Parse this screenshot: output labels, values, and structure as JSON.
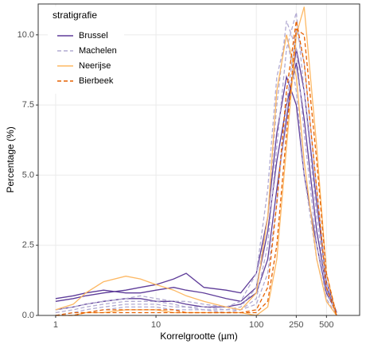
{
  "chart_data": {
    "type": "line",
    "log_x": true,
    "grid": true,
    "legend": "top-left",
    "legend_title": "stratigrafie",
    "x_label": "Korrelgrootte (µm)",
    "y_label": "Percentage (%)",
    "xlim": [
      0.67,
      1070
    ],
    "xticks": [
      1,
      10,
      100,
      250,
      500
    ],
    "ylim": [
      0,
      11.1
    ],
    "yticks": [
      {
        "value": 0,
        "label": "0.0"
      },
      {
        "value": 2.5,
        "label": "2.5"
      },
      {
        "value": 5,
        "label": "5.0"
      },
      {
        "value": 7.5,
        "label": "7.5"
      },
      {
        "value": 10,
        "label": "10.0"
      }
    ],
    "x": [
      1,
      1.5,
      2,
      3,
      5,
      7,
      10,
      15,
      20,
      30,
      50,
      70,
      100,
      130,
      160,
      200,
      250,
      300,
      400,
      500,
      630
    ],
    "series": [
      {
        "name": "Brussel",
        "color": "#5e3c99",
        "linetype": "solid",
        "curves": [
          [
            0.5,
            0.6,
            0.7,
            0.8,
            0.9,
            1.0,
            1.1,
            1.3,
            1.5,
            1.0,
            0.9,
            0.8,
            1.5,
            3.5,
            6.5,
            8.5,
            7.5,
            5.0,
            2.5,
            0.8,
            0.1
          ],
          [
            0.6,
            0.7,
            0.8,
            0.9,
            0.8,
            0.8,
            0.9,
            1.0,
            0.9,
            0.8,
            0.6,
            0.5,
            1.0,
            3.0,
            5.5,
            7.5,
            9.0,
            7.0,
            3.0,
            1.0,
            0.1
          ],
          [
            0.2,
            0.3,
            0.4,
            0.5,
            0.6,
            0.6,
            0.5,
            0.5,
            0.4,
            0.3,
            0.3,
            0.4,
            0.8,
            2.0,
            4.5,
            7.0,
            9.5,
            8.0,
            4.0,
            1.2,
            0.1
          ]
        ]
      },
      {
        "name": "Machelen",
        "color": "#b2abd2",
        "linetype": "dashed",
        "curves": [
          [
            0.1,
            0.2,
            0.3,
            0.4,
            0.5,
            0.5,
            0.5,
            0.4,
            0.3,
            0.3,
            0.2,
            0.3,
            1.0,
            3.5,
            7.5,
            10.5,
            9.5,
            6.5,
            2.5,
            0.6,
            0.0
          ],
          [
            0.0,
            0.1,
            0.2,
            0.3,
            0.4,
            0.4,
            0.4,
            0.3,
            0.3,
            0.2,
            0.2,
            0.2,
            0.6,
            2.5,
            6.0,
            9.5,
            10.8,
            8.0,
            3.5,
            0.9,
            0.0
          ],
          [
            0.2,
            0.3,
            0.4,
            0.5,
            0.6,
            0.7,
            0.6,
            0.5,
            0.5,
            0.4,
            0.3,
            0.5,
            1.5,
            4.5,
            8.5,
            10.0,
            8.0,
            5.0,
            2.0,
            0.5,
            0.0
          ],
          [
            0.0,
            0.1,
            0.1,
            0.2,
            0.3,
            0.3,
            0.3,
            0.2,
            0.2,
            0.2,
            0.1,
            0.2,
            0.4,
            1.5,
            4.0,
            7.5,
            10.2,
            9.0,
            4.5,
            1.2,
            0.0
          ]
        ]
      },
      {
        "name": "Neerijse",
        "color": "#fdb863",
        "linetype": "solid",
        "curves": [
          [
            0.2,
            0.4,
            0.8,
            1.2,
            1.4,
            1.3,
            1.1,
            0.9,
            0.7,
            0.5,
            0.3,
            0.2,
            0.8,
            3.5,
            8.0,
            10.0,
            8.5,
            5.5,
            2.0,
            0.5,
            0.0
          ],
          [
            0.0,
            0.0,
            0.1,
            0.1,
            0.2,
            0.2,
            0.2,
            0.1,
            0.1,
            0.1,
            0.1,
            0.1,
            0.0,
            0.3,
            2.0,
            6.0,
            10.0,
            11.0,
            6.0,
            1.5,
            0.0
          ]
        ]
      },
      {
        "name": "Bierbeek",
        "color": "#e66101",
        "linetype": "dashed",
        "curves": [
          [
            0.0,
            0.1,
            0.1,
            0.2,
            0.2,
            0.2,
            0.2,
            0.2,
            0.1,
            0.1,
            0.1,
            0.1,
            0.2,
            1.0,
            4.0,
            8.0,
            10.5,
            9.0,
            4.5,
            1.0,
            0.0
          ],
          [
            0.0,
            0.0,
            0.1,
            0.1,
            0.1,
            0.1,
            0.1,
            0.1,
            0.1,
            0.1,
            0.1,
            0.1,
            0.1,
            0.5,
            2.5,
            6.5,
            10.2,
            10.0,
            5.5,
            1.5,
            0.0
          ]
        ]
      }
    ]
  }
}
